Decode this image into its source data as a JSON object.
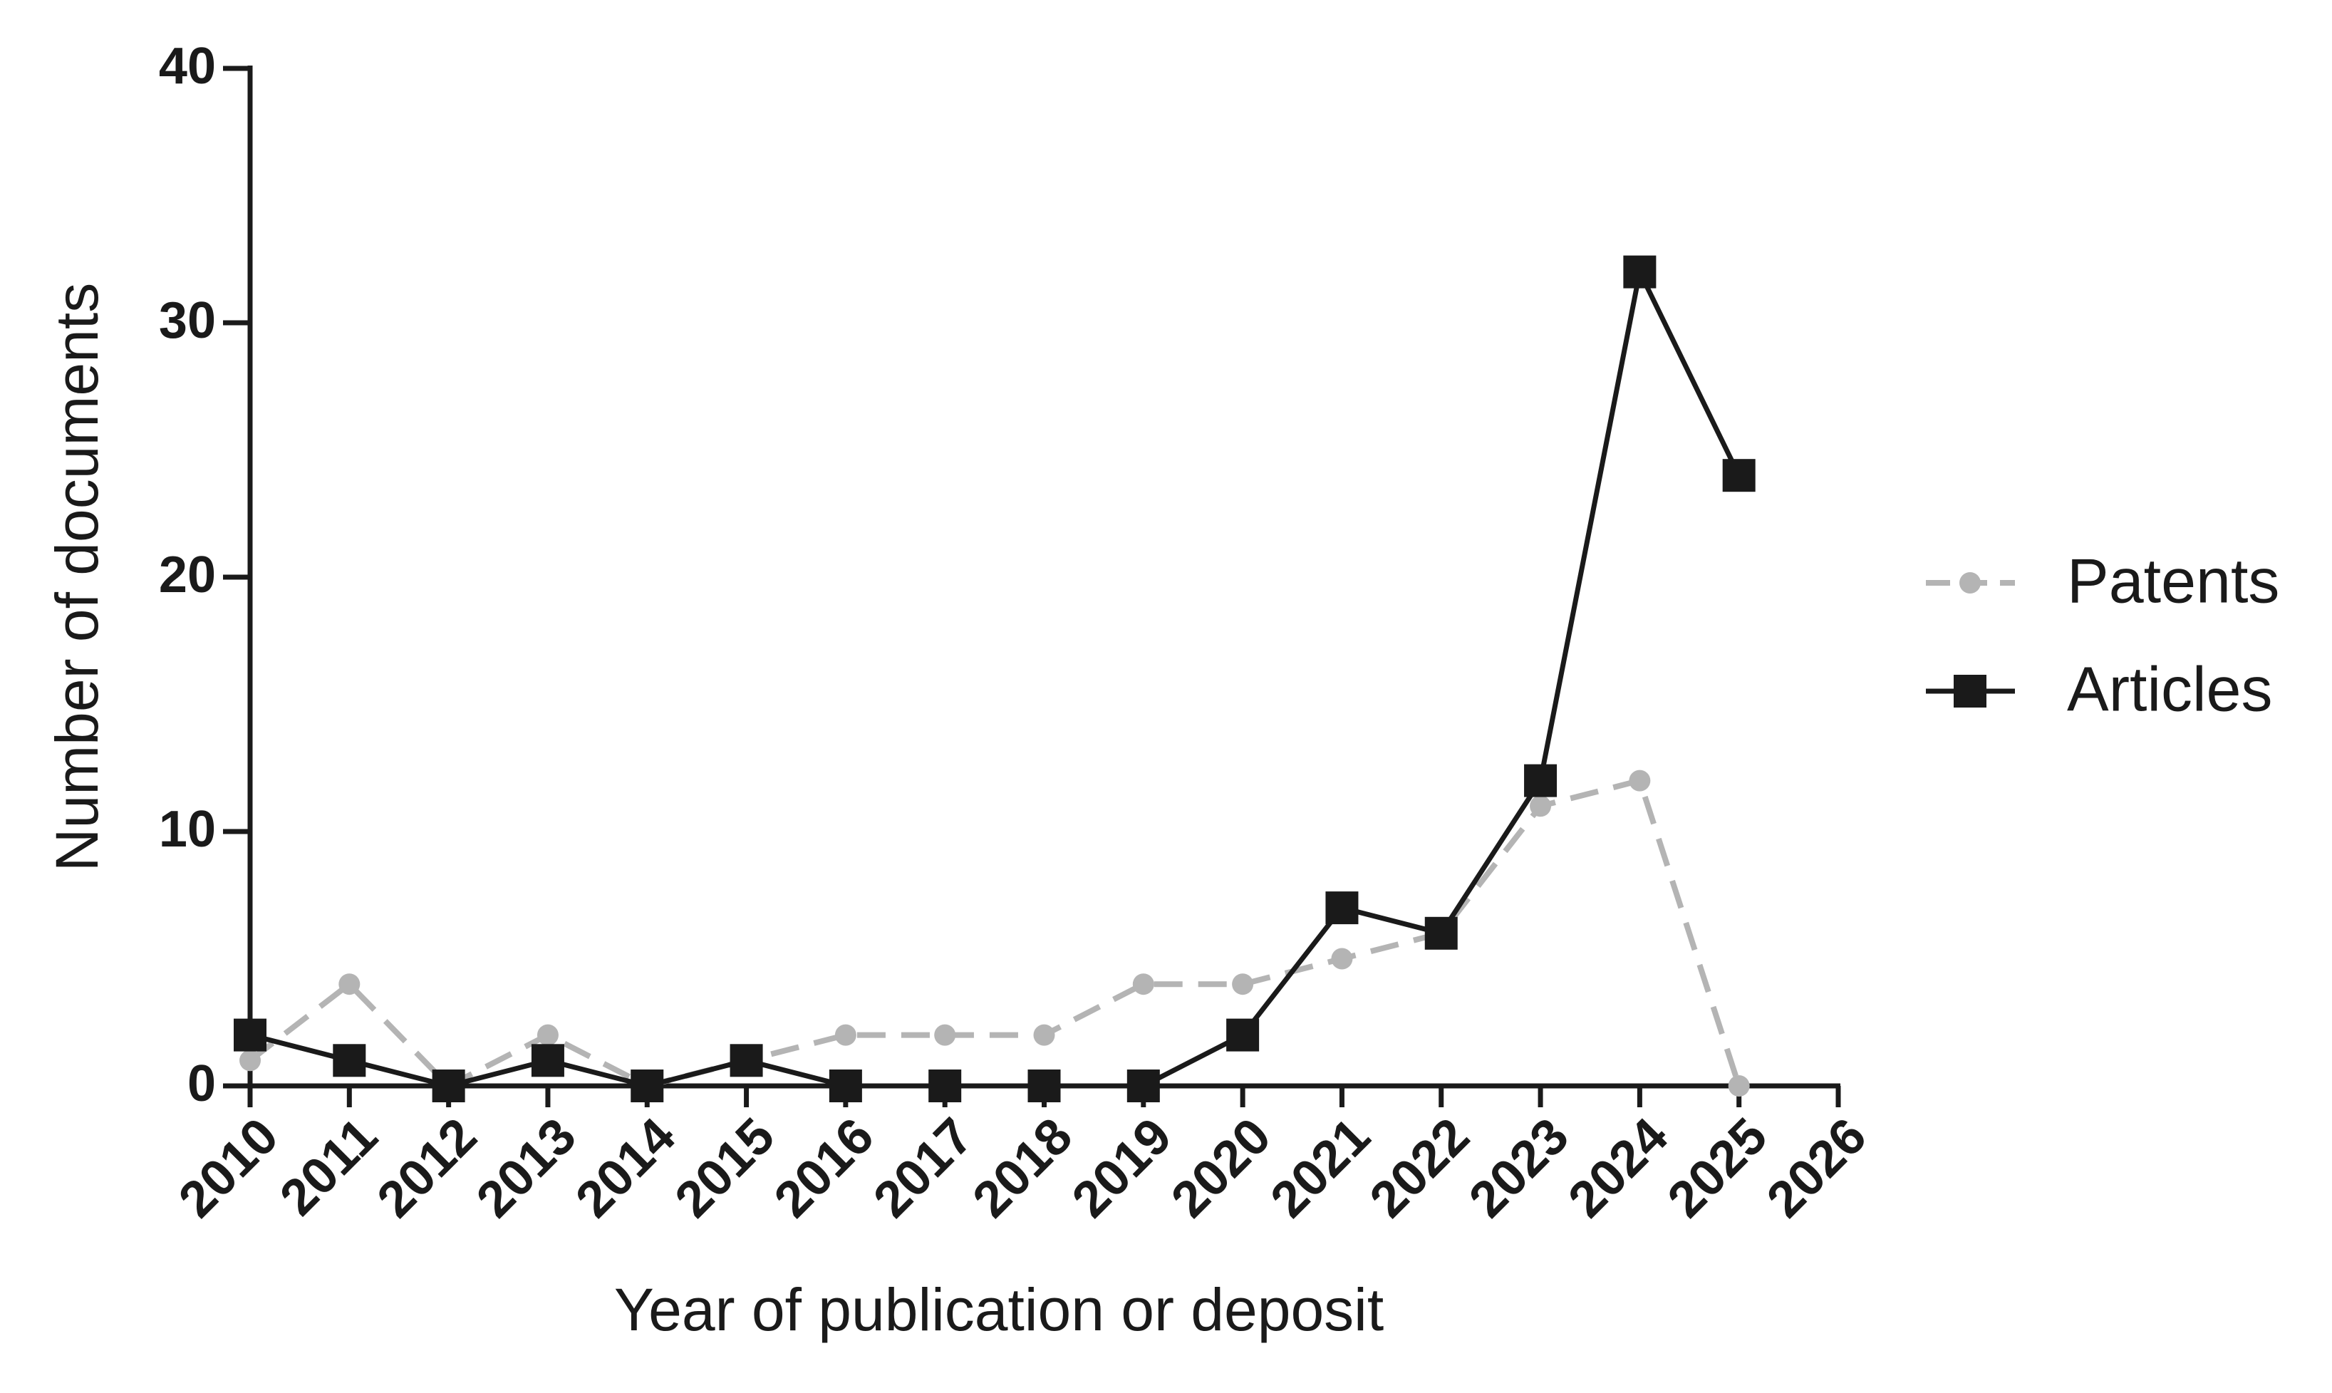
{
  "chart_data": {
    "type": "line",
    "x_label": "Year of publication or deposit",
    "y_label": "Number of documents",
    "x": [
      2010,
      2011,
      2012,
      2013,
      2014,
      2015,
      2016,
      2017,
      2018,
      2019,
      2020,
      2021,
      2022,
      2023,
      2024,
      2025
    ],
    "series": [
      {
        "name": "Patents",
        "color": "#b4b4b4",
        "dashed": true,
        "marker": "circle",
        "values": [
          1,
          4,
          0,
          2,
          0,
          1,
          2,
          2,
          2,
          4,
          4,
          5,
          6,
          11,
          12,
          0
        ]
      },
      {
        "name": "Articles",
        "color": "#1a1a1a",
        "dashed": false,
        "marker": "square",
        "values": [
          2,
          1,
          0,
          1,
          0,
          1,
          0,
          0,
          0,
          0,
          2,
          7,
          6,
          12,
          32,
          24
        ]
      }
    ],
    "xlim": [
      2010,
      2026
    ],
    "xticks": [
      2010,
      2011,
      2012,
      2013,
      2014,
      2015,
      2016,
      2017,
      2018,
      2019,
      2020,
      2021,
      2022,
      2023,
      2024,
      2025,
      2026
    ],
    "ylim": [
      0,
      40
    ],
    "yticks": [
      0,
      10,
      20,
      30,
      40
    ],
    "legend": "right"
  }
}
